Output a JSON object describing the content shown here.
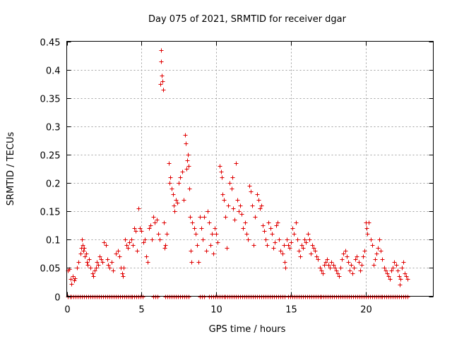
{
  "chart_data": {
    "type": "scatter",
    "title": "Day 075 of 2021, SRMTID for receiver dgar",
    "xlabel": "GPS time / hours",
    "ylabel": "SRMTID / TECUs",
    "xlim": [
      0,
      24.5
    ],
    "ylim": [
      0,
      0.45
    ],
    "x_ticks": [
      0,
      5,
      10,
      15,
      20
    ],
    "x_tick_labels": [
      "0",
      "5",
      "10",
      "15",
      "20"
    ],
    "y_ticks": [
      0,
      0.05,
      0.1,
      0.15,
      0.2,
      0.25,
      0.3,
      0.35,
      0.4,
      0.45
    ],
    "y_tick_labels": [
      "0",
      "0.05",
      "0.1",
      "0.15",
      "0.2",
      "0.25",
      "0.3",
      "0.35",
      "0.4",
      "0.45"
    ],
    "grid": true,
    "marker": "+",
    "color": "#e00000",
    "series": [
      {
        "name": "SRMTID",
        "points": [
          [
            0.05,
            0.045
          ],
          [
            0.15,
            0.048
          ],
          [
            0.25,
            0.03
          ],
          [
            0.3,
            0.022
          ],
          [
            0.4,
            0.035
          ],
          [
            0.5,
            0.028
          ],
          [
            0.55,
            0.032
          ],
          [
            0.7,
            0.05
          ],
          [
            0.8,
            0.06
          ],
          [
            0.9,
            0.075
          ],
          [
            0.95,
            0.085
          ],
          [
            1.0,
            0.1
          ],
          [
            1.05,
            0.09
          ],
          [
            1.1,
            0.08
          ],
          [
            1.15,
            0.085
          ],
          [
            1.2,
            0.07
          ],
          [
            1.3,
            0.075
          ],
          [
            1.35,
            0.06
          ],
          [
            1.4,
            0.055
          ],
          [
            1.5,
            0.065
          ],
          [
            1.6,
            0.05
          ],
          [
            1.7,
            0.04
          ],
          [
            1.75,
            0.035
          ],
          [
            1.85,
            0.045
          ],
          [
            1.95,
            0.05
          ],
          [
            2.0,
            0.06
          ],
          [
            2.1,
            0.055
          ],
          [
            2.2,
            0.07
          ],
          [
            2.3,
            0.065
          ],
          [
            2.4,
            0.06
          ],
          [
            2.5,
            0.095
          ],
          [
            2.6,
            0.09
          ],
          [
            2.7,
            0.065
          ],
          [
            2.75,
            0.055
          ],
          [
            2.85,
            0.05
          ],
          [
            3.0,
            0.06
          ],
          [
            3.1,
            0.045
          ],
          [
            3.3,
            0.075
          ],
          [
            3.4,
            0.08
          ],
          [
            3.5,
            0.07
          ],
          [
            3.6,
            0.05
          ],
          [
            3.7,
            0.04
          ],
          [
            3.75,
            0.035
          ],
          [
            3.8,
            0.05
          ],
          [
            3.9,
            0.1
          ],
          [
            4.0,
            0.09
          ],
          [
            4.1,
            0.085
          ],
          [
            4.2,
            0.095
          ],
          [
            4.3,
            0.1
          ],
          [
            4.4,
            0.09
          ],
          [
            4.5,
            0.12
          ],
          [
            4.6,
            0.115
          ],
          [
            4.7,
            0.08
          ],
          [
            4.8,
            0.155
          ],
          [
            4.9,
            0.12
          ],
          [
            5.0,
            0.115
          ],
          [
            5.1,
            0.095
          ],
          [
            5.2,
            0.1
          ],
          [
            5.3,
            0.07
          ],
          [
            5.4,
            0.06
          ],
          [
            5.5,
            0.12
          ],
          [
            5.6,
            0.125
          ],
          [
            5.7,
            0.1
          ],
          [
            5.8,
            0.14
          ],
          [
            5.9,
            0.13
          ],
          [
            6.0,
            0.135
          ],
          [
            6.1,
            0.11
          ],
          [
            6.2,
            0.1
          ],
          [
            6.25,
            0.375
          ],
          [
            6.3,
            0.415
          ],
          [
            6.32,
            0.435
          ],
          [
            6.35,
            0.39
          ],
          [
            6.4,
            0.38
          ],
          [
            6.45,
            0.365
          ],
          [
            6.5,
            0.13
          ],
          [
            6.55,
            0.085
          ],
          [
            6.6,
            0.09
          ],
          [
            6.7,
            0.11
          ],
          [
            6.8,
            0.235
          ],
          [
            6.85,
            0.2
          ],
          [
            6.9,
            0.21
          ],
          [
            7.0,
            0.19
          ],
          [
            7.1,
            0.18
          ],
          [
            7.15,
            0.16
          ],
          [
            7.2,
            0.15
          ],
          [
            7.3,
            0.17
          ],
          [
            7.4,
            0.165
          ],
          [
            7.5,
            0.2
          ],
          [
            7.6,
            0.21
          ],
          [
            7.7,
            0.22
          ],
          [
            7.8,
            0.17
          ],
          [
            7.9,
            0.285
          ],
          [
            7.95,
            0.27
          ],
          [
            8.0,
            0.225
          ],
          [
            8.05,
            0.24
          ],
          [
            8.1,
            0.25
          ],
          [
            8.15,
            0.23
          ],
          [
            8.2,
            0.19
          ],
          [
            8.25,
            0.14
          ],
          [
            8.3,
            0.08
          ],
          [
            8.35,
            0.06
          ],
          [
            8.4,
            0.13
          ],
          [
            8.5,
            0.12
          ],
          [
            8.6,
            0.11
          ],
          [
            8.7,
            0.09
          ],
          [
            8.8,
            0.06
          ],
          [
            8.9,
            0.14
          ],
          [
            9.0,
            0.12
          ],
          [
            9.1,
            0.1
          ],
          [
            9.2,
            0.14
          ],
          [
            9.3,
            0.08
          ],
          [
            9.4,
            0.15
          ],
          [
            9.5,
            0.13
          ],
          [
            9.6,
            0.09
          ],
          [
            9.7,
            0.11
          ],
          [
            9.8,
            0.075
          ],
          [
            9.9,
            0.12
          ],
          [
            10.0,
            0.11
          ],
          [
            10.1,
            0.095
          ],
          [
            10.2,
            0.23
          ],
          [
            10.3,
            0.22
          ],
          [
            10.35,
            0.21
          ],
          [
            10.4,
            0.18
          ],
          [
            10.5,
            0.17
          ],
          [
            10.6,
            0.14
          ],
          [
            10.7,
            0.085
          ],
          [
            10.8,
            0.16
          ],
          [
            10.9,
            0.2
          ],
          [
            11.0,
            0.19
          ],
          [
            11.05,
            0.21
          ],
          [
            11.1,
            0.155
          ],
          [
            11.2,
            0.135
          ],
          [
            11.3,
            0.235
          ],
          [
            11.4,
            0.17
          ],
          [
            11.5,
            0.15
          ],
          [
            11.6,
            0.16
          ],
          [
            11.7,
            0.145
          ],
          [
            11.8,
            0.12
          ],
          [
            11.9,
            0.13
          ],
          [
            12.0,
            0.11
          ],
          [
            12.1,
            0.1
          ],
          [
            12.2,
            0.195
          ],
          [
            12.3,
            0.185
          ],
          [
            12.4,
            0.16
          ],
          [
            12.5,
            0.09
          ],
          [
            12.6,
            0.14
          ],
          [
            12.7,
            0.18
          ],
          [
            12.8,
            0.17
          ],
          [
            12.9,
            0.155
          ],
          [
            13.0,
            0.16
          ],
          [
            13.1,
            0.125
          ],
          [
            13.2,
            0.115
          ],
          [
            13.3,
            0.1
          ],
          [
            13.4,
            0.09
          ],
          [
            13.5,
            0.13
          ],
          [
            13.6,
            0.12
          ],
          [
            13.7,
            0.11
          ],
          [
            13.8,
            0.085
          ],
          [
            13.9,
            0.095
          ],
          [
            14.0,
            0.125
          ],
          [
            14.1,
            0.13
          ],
          [
            14.2,
            0.1
          ],
          [
            14.3,
            0.08
          ],
          [
            14.4,
            0.075
          ],
          [
            14.5,
            0.09
          ],
          [
            14.55,
            0.06
          ],
          [
            14.6,
            0.05
          ],
          [
            14.7,
            0.1
          ],
          [
            14.8,
            0.09
          ],
          [
            14.9,
            0.085
          ],
          [
            15.0,
            0.095
          ],
          [
            15.1,
            0.12
          ],
          [
            15.2,
            0.11
          ],
          [
            15.3,
            0.13
          ],
          [
            15.4,
            0.1
          ],
          [
            15.5,
            0.08
          ],
          [
            15.6,
            0.07
          ],
          [
            15.7,
            0.09
          ],
          [
            15.8,
            0.085
          ],
          [
            15.9,
            0.1
          ],
          [
            16.0,
            0.095
          ],
          [
            16.1,
            0.11
          ],
          [
            16.2,
            0.1
          ],
          [
            16.3,
            0.075
          ],
          [
            16.4,
            0.09
          ],
          [
            16.5,
            0.085
          ],
          [
            16.6,
            0.08
          ],
          [
            16.7,
            0.07
          ],
          [
            16.8,
            0.065
          ],
          [
            16.9,
            0.05
          ],
          [
            17.0,
            0.045
          ],
          [
            17.1,
            0.04
          ],
          [
            17.2,
            0.055
          ],
          [
            17.3,
            0.06
          ],
          [
            17.4,
            0.065
          ],
          [
            17.5,
            0.055
          ],
          [
            17.6,
            0.05
          ],
          [
            17.7,
            0.06
          ],
          [
            17.8,
            0.055
          ],
          [
            17.9,
            0.05
          ],
          [
            18.0,
            0.045
          ],
          [
            18.1,
            0.04
          ],
          [
            18.2,
            0.035
          ],
          [
            18.3,
            0.05
          ],
          [
            18.4,
            0.065
          ],
          [
            18.5,
            0.075
          ],
          [
            18.6,
            0.08
          ],
          [
            18.7,
            0.07
          ],
          [
            18.8,
            0.06
          ],
          [
            18.9,
            0.045
          ],
          [
            19.0,
            0.055
          ],
          [
            19.1,
            0.04
          ],
          [
            19.2,
            0.05
          ],
          [
            19.3,
            0.065
          ],
          [
            19.4,
            0.07
          ],
          [
            19.5,
            0.06
          ],
          [
            19.6,
            0.045
          ],
          [
            19.7,
            0.055
          ],
          [
            19.8,
            0.07
          ],
          [
            19.9,
            0.08
          ],
          [
            20.0,
            0.13
          ],
          [
            20.05,
            0.12
          ],
          [
            20.1,
            0.11
          ],
          [
            20.2,
            0.13
          ],
          [
            20.3,
            0.1
          ],
          [
            20.4,
            0.09
          ],
          [
            20.5,
            0.055
          ],
          [
            20.6,
            0.065
          ],
          [
            20.7,
            0.075
          ],
          [
            20.8,
            0.085
          ],
          [
            20.9,
            0.1
          ],
          [
            21.0,
            0.08
          ],
          [
            21.1,
            0.065
          ],
          [
            21.2,
            0.05
          ],
          [
            21.3,
            0.045
          ],
          [
            21.4,
            0.04
          ],
          [
            21.5,
            0.035
          ],
          [
            21.6,
            0.03
          ],
          [
            21.7,
            0.045
          ],
          [
            21.8,
            0.05
          ],
          [
            21.9,
            0.06
          ],
          [
            22.0,
            0.055
          ],
          [
            22.1,
            0.045
          ],
          [
            22.2,
            0.035
          ],
          [
            22.25,
            0.02
          ],
          [
            22.3,
            0.03
          ],
          [
            22.4,
            0.05
          ],
          [
            22.5,
            0.06
          ],
          [
            22.6,
            0.04
          ],
          [
            22.7,
            0.035
          ],
          [
            22.8,
            0.03
          ]
        ]
      }
    ],
    "zero_segments": [
      [
        0.05,
        5.1
      ],
      [
        5.8,
        6.2
      ],
      [
        6.6,
        8.2
      ],
      [
        8.9,
        9.3
      ],
      [
        9.5,
        14.6
      ],
      [
        14.8,
        22.9
      ]
    ],
    "zero_spacing_hours": 0.14
  }
}
